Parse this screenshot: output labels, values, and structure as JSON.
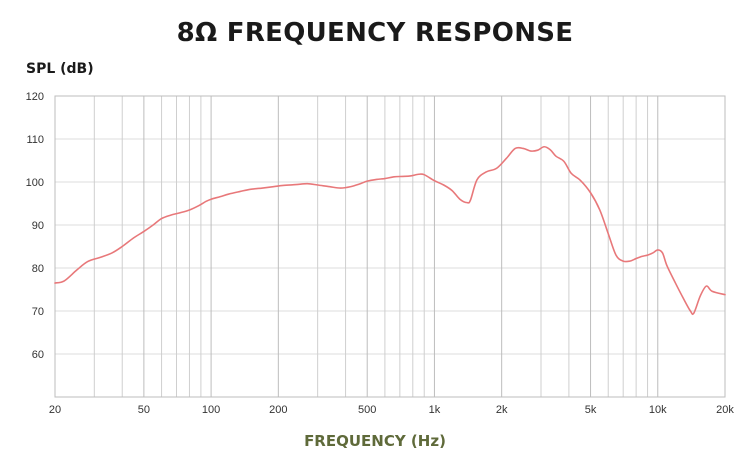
{
  "chart_data": {
    "type": "line",
    "title": "8Ω FREQUENCY RESPONSE",
    "xlabel": "FREQUENCY (Hz)",
    "ylabel": "SPL (dB)",
    "xscale": "log",
    "xlim": [
      20,
      20000
    ],
    "ylim": [
      50,
      120
    ],
    "yticks": [
      60,
      70,
      80,
      90,
      100,
      110,
      120
    ],
    "yticklabels": [
      "60",
      "70",
      "80",
      "90",
      "100",
      "110",
      "120"
    ],
    "xticks": [
      20,
      50,
      100,
      200,
      500,
      1000,
      2000,
      5000,
      10000,
      20000
    ],
    "xticklabels": [
      "20",
      "50",
      "100",
      "200",
      "500",
      "1k",
      "2k",
      "5k",
      "10k",
      "20k"
    ],
    "x_minor_gridlines": [
      30,
      40,
      60,
      70,
      80,
      90,
      300,
      400,
      600,
      700,
      800,
      900,
      3000,
      4000,
      6000,
      7000,
      8000,
      9000
    ],
    "grid": true,
    "line_color": "#e8787a",
    "series": [
      {
        "x": [
          20,
          22,
          25,
          28,
          32,
          36,
          40,
          45,
          50,
          55,
          60,
          66,
          72,
          80,
          88,
          95,
          100,
          110,
          120,
          135,
          150,
          170,
          190,
          210,
          240,
          270,
          300,
          340,
          380,
          420,
          460,
          500,
          550,
          600,
          660,
          720,
          780,
          850,
          900,
          1000,
          1100,
          1200,
          1300,
          1400,
          1450,
          1550,
          1700,
          1900,
          2100,
          2300,
          2500,
          2700,
          2900,
          3100,
          3300,
          3500,
          3800,
          4100,
          4500,
          5000,
          5500,
          6000,
          6500,
          7000,
          7500,
          8000,
          8500,
          9000,
          9500,
          10000,
          10500,
          11000,
          12000,
          13000,
          14000,
          14500,
          15500,
          16500,
          17500,
          20000
        ],
        "y": [
          76.5,
          77,
          79.5,
          81.5,
          82.5,
          83.5,
          85,
          87,
          88.5,
          90,
          91.5,
          92.3,
          92.8,
          93.5,
          94.5,
          95.5,
          96,
          96.6,
          97.2,
          97.8,
          98.3,
          98.6,
          98.9,
          99.2,
          99.4,
          99.6,
          99.3,
          98.9,
          98.6,
          98.9,
          99.5,
          100.2,
          100.6,
          100.8,
          101.2,
          101.3,
          101.4,
          101.8,
          101.7,
          100.3,
          99.3,
          98,
          96,
          95.2,
          95.8,
          100.5,
          102.3,
          103.2,
          105.5,
          107.8,
          107.8,
          107.2,
          107.4,
          108.2,
          107.5,
          106,
          104.8,
          102,
          100.4,
          97.5,
          93.5,
          88,
          83,
          81.6,
          81.6,
          82.2,
          82.7,
          83,
          83.5,
          84.2,
          83.5,
          80.5,
          76.5,
          73,
          70,
          69.5,
          73.5,
          75.8,
          74.6,
          73.8
        ]
      }
    ]
  }
}
